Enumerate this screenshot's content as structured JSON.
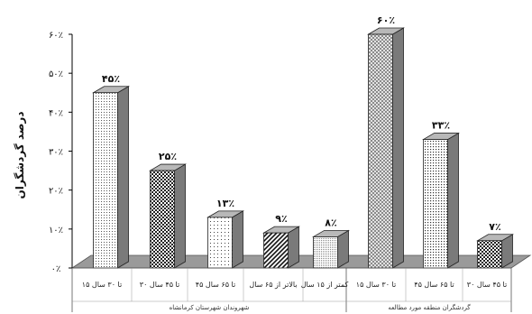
{
  "chart_data": {
    "type": "bar",
    "ylabel": "درصد گردشگران",
    "ylim": [
      0,
      60
    ],
    "y_ticks": [
      {
        "value": 0,
        "label": "۰٪"
      },
      {
        "value": 10,
        "label": "۱۰٪"
      },
      {
        "value": 20,
        "label": "۲۰٪"
      },
      {
        "value": 30,
        "label": "۳۰٪"
      },
      {
        "value": 40,
        "label": "۴۰٪"
      },
      {
        "value": 50,
        "label": "۵۰٪"
      },
      {
        "value": 60,
        "label": "۶۰٪"
      }
    ],
    "groups": [
      {
        "label": "شهروندان شهرستان کرمانشاه",
        "bars": [
          0,
          1,
          2,
          3,
          4
        ]
      },
      {
        "label": "گردشگران منطقه مورد مطالعه",
        "bars": [
          5,
          6,
          7
        ]
      }
    ],
    "bars": [
      {
        "category": "۱۵ تا ۳۰ سال",
        "value": 45,
        "label": "۴۵٪",
        "pattern": "dots-fine"
      },
      {
        "category": "۳۰ تا ۴۵ سال",
        "value": 25,
        "label": "۲۵٪",
        "pattern": "checker"
      },
      {
        "category": "۴۵ تا ۶۵ سال",
        "value": 13,
        "label": "۱۳٪",
        "pattern": "dots-sparse"
      },
      {
        "category": "بالاتر از ۶۵ سال",
        "value": 9,
        "label": "۹٪",
        "pattern": "diagonal"
      },
      {
        "category": "کمتر از ۱۵ سال",
        "value": 8,
        "label": "۸٪",
        "pattern": "dots-dense"
      },
      {
        "category": "۱۵ تا ۳۰ سال",
        "value": 60,
        "label": "۶۰٪",
        "pattern": "crosshatch"
      },
      {
        "category": "۴۵ تا ۶۵ سال",
        "value": 33,
        "label": "۳۳٪",
        "pattern": "dots-medium"
      },
      {
        "category": "۳۰ تا ۴۵ سال",
        "value": 7,
        "label": "۷٪",
        "pattern": "checker"
      }
    ],
    "colors": {
      "bar_side": "#7a7a7a",
      "bar_top": "#b8b8b8",
      "floor": "#9a9a9a",
      "axis": "#000000"
    },
    "grid": false
  }
}
